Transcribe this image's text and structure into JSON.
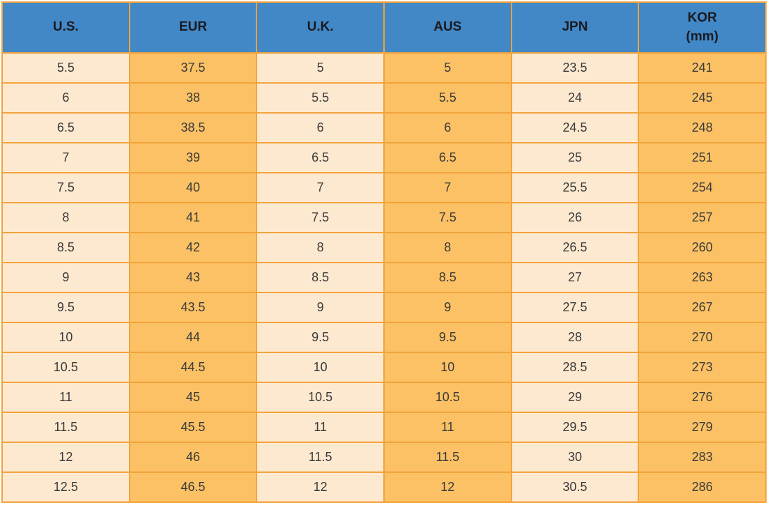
{
  "chart_data": {
    "type": "table",
    "title": "",
    "columns": [
      {
        "label": "U.S.",
        "sublabel": ""
      },
      {
        "label": "EUR",
        "sublabel": ""
      },
      {
        "label": "U.K.",
        "sublabel": ""
      },
      {
        "label": "AUS",
        "sublabel": ""
      },
      {
        "label": "JPN",
        "sublabel": ""
      },
      {
        "label": "KOR",
        "sublabel": "(mm)"
      }
    ],
    "rows": [
      [
        "5.5",
        "37.5",
        "5",
        "5",
        "23.5",
        "241"
      ],
      [
        "6",
        "38",
        "5.5",
        "5.5",
        "24",
        "245"
      ],
      [
        "6.5",
        "38.5",
        "6",
        "6",
        "24.5",
        "248"
      ],
      [
        "7",
        "39",
        "6.5",
        "6.5",
        "25",
        "251"
      ],
      [
        "7.5",
        "40",
        "7",
        "7",
        "25.5",
        "254"
      ],
      [
        "8",
        "41",
        "7.5",
        "7.5",
        "26",
        "257"
      ],
      [
        "8.5",
        "42",
        "8",
        "8",
        "26.5",
        "260"
      ],
      [
        "9",
        "43",
        "8.5",
        "8.5",
        "27",
        "263"
      ],
      [
        "9.5",
        "43.5",
        "9",
        "9",
        "27.5",
        "267"
      ],
      [
        "10",
        "44",
        "9.5",
        "9.5",
        "28",
        "270"
      ],
      [
        "10.5",
        "44.5",
        "10",
        "10",
        "28.5",
        "273"
      ],
      [
        "11",
        "45",
        "10.5",
        "10.5",
        "29",
        "276"
      ],
      [
        "11.5",
        "45.5",
        "11",
        "11",
        "29.5",
        "279"
      ],
      [
        "12",
        "46",
        "11.5",
        "11.5",
        "30",
        "283"
      ],
      [
        "12.5",
        "46.5",
        "12",
        "12",
        "30.5",
        "286"
      ]
    ]
  },
  "colors": {
    "header_bg": "#4288C6",
    "header_text": "#1A1A20",
    "col_light": "#FDE9D0",
    "col_orange": "#FBC164",
    "border": "#F2A33C",
    "cell_text": "#3A3A3A"
  }
}
